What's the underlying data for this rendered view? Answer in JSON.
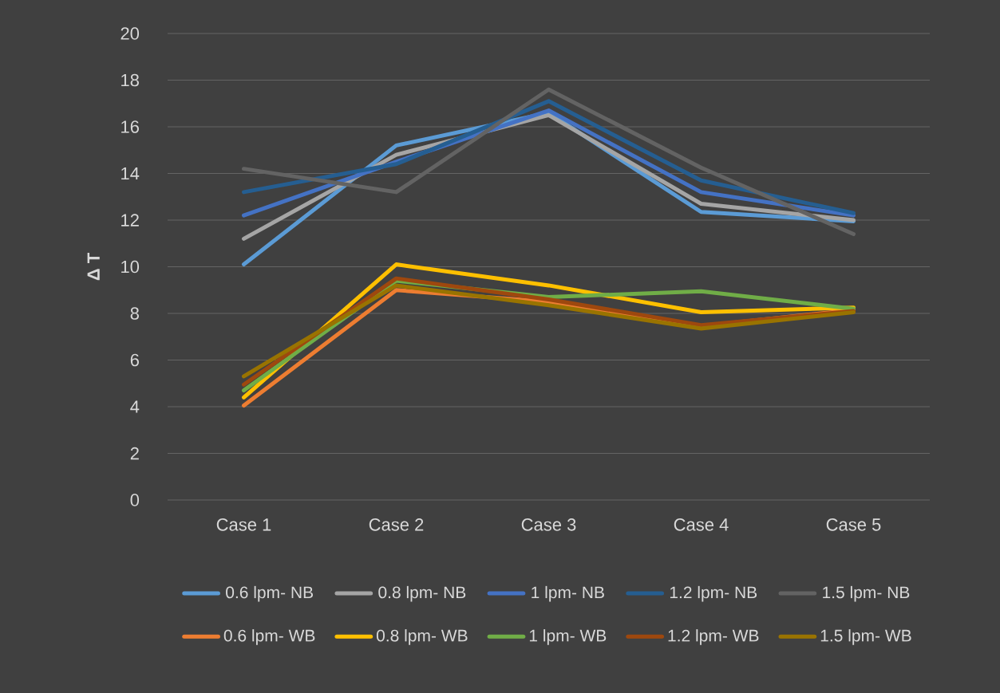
{
  "chart_data": {
    "type": "line",
    "ylabel": "**Δ T**",
    "categories": [
      "Case 1",
      "Case 2",
      "Case 3",
      "Case 4",
      "Case 5"
    ],
    "series": [
      {
        "name": "0.6 lpm- NB",
        "color": "#5b9bd5",
        "values": [
          10.1,
          15.2,
          16.6,
          12.35,
          11.95
        ]
      },
      {
        "name": "0.8 lpm- NB",
        "color": "#a5a5a5",
        "values": [
          11.2,
          14.8,
          16.5,
          12.7,
          12.0
        ]
      },
      {
        "name": "1 lpm- NB",
        "color": "#4472c4",
        "values": [
          12.2,
          14.5,
          16.7,
          13.2,
          12.2
        ]
      },
      {
        "name": "1.2 lpm- NB",
        "color": "#255e91",
        "values": [
          13.2,
          14.4,
          17.1,
          13.7,
          12.3
        ]
      },
      {
        "name": "1.5 lpm- NB",
        "color": "#636363",
        "values": [
          14.2,
          13.2,
          17.6,
          14.25,
          11.4
        ]
      },
      {
        "name": "0.6 lpm- WB",
        "color": "#ed7d31",
        "values": [
          4.05,
          9.0,
          8.5,
          7.45,
          8.15
        ]
      },
      {
        "name": "0.8 lpm- WB",
        "color": "#ffc000",
        "values": [
          4.4,
          10.1,
          9.2,
          8.05,
          8.25
        ]
      },
      {
        "name": "1 lpm- WB",
        "color": "#70ad47",
        "values": [
          4.7,
          9.4,
          8.7,
          8.95,
          8.2
        ]
      },
      {
        "name": "1.2 lpm- WB",
        "color": "#9e480e",
        "values": [
          4.95,
          9.5,
          8.6,
          7.5,
          8.1
        ]
      },
      {
        "name": "1.5 lpm- WB",
        "color": "#997300",
        "values": [
          5.3,
          9.2,
          8.35,
          7.35,
          8.05
        ]
      }
    ],
    "ylim": [
      0,
      20
    ],
    "yticks": [
      0,
      2,
      4,
      6,
      8,
      10,
      12,
      14,
      16,
      18,
      20
    ],
    "grid": "y",
    "legend": "bottom",
    "marker": "none",
    "line_style": "solid"
  }
}
